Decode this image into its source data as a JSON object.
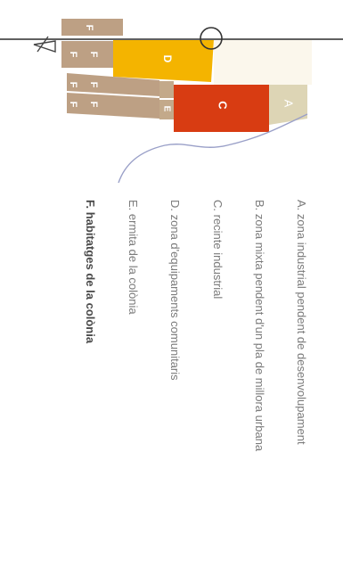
{
  "map": {
    "zones": [
      {
        "id": "A",
        "label": "A",
        "fill": "#ddd5b5",
        "label_color": "#ffffff"
      },
      {
        "id": "B",
        "label": "",
        "fill": "#fbf7ec"
      },
      {
        "id": "C",
        "label": "C",
        "fill": "#d83c12",
        "label_color": "#ffffff"
      },
      {
        "id": "D",
        "label": "D",
        "fill": "#f4b400",
        "label_color": "#ffffff"
      },
      {
        "id": "E",
        "label": "E",
        "fill": "#c3a98a",
        "label_color": "#ffffff"
      },
      {
        "id": "F",
        "label": "F",
        "fill": "#bda084",
        "label_color": "#ffffff"
      }
    ],
    "road_color": "#606060",
    "river_color": "#9aa0c8",
    "north_marker": "north-arrow-icon",
    "locator_marker": "circle-marker-icon"
  },
  "legend": {
    "items": [
      {
        "text": "A. zona industrial pendent de desenvolupament",
        "bold": false
      },
      {
        "text": "B. zona mixta pendent d'un pla de millora urbana",
        "bold": false
      },
      {
        "text": "C. recinte industrial",
        "bold": false
      },
      {
        "text": "D. zona d'equipaments comunitaris",
        "bold": false
      },
      {
        "text": "E. ermita de la colònia",
        "bold": false
      },
      {
        "text": "F. habitatges de la colònia",
        "bold": true
      }
    ]
  }
}
